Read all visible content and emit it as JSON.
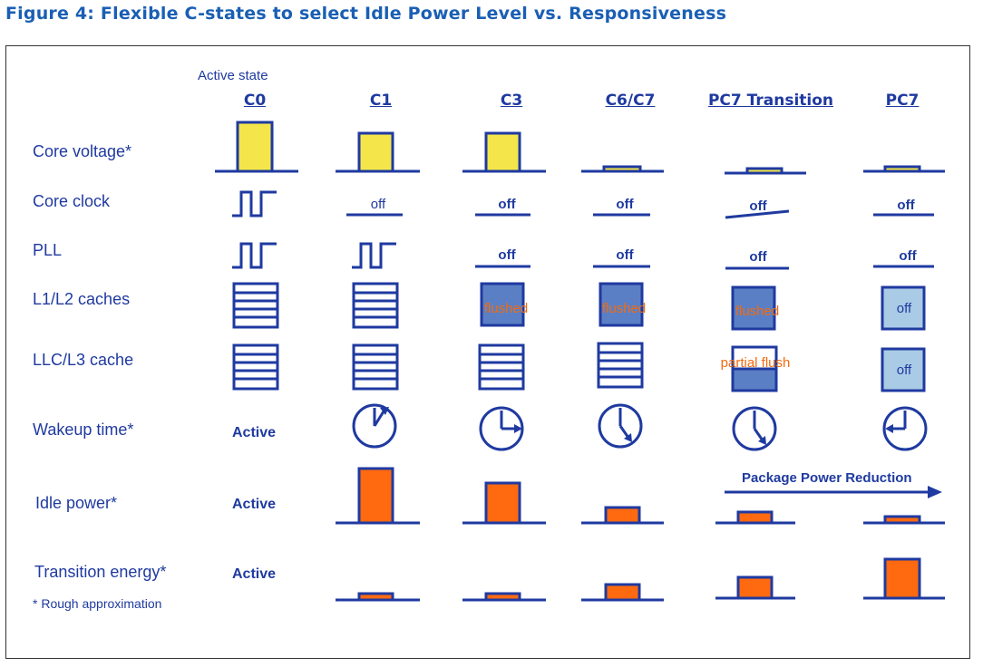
{
  "figure_title": "Figure 4: Flexible C-states to select Idle Power Level vs. Responsiveness",
  "active_state_caption": "Active state",
  "columns": [
    "C0",
    "C1",
    "C3",
    "C6/C7",
    "PC7 Transition",
    "PC7"
  ],
  "rows": [
    "Core voltage*",
    "Core clock",
    "PLL",
    "L1/L2 caches",
    "LLC/L3 cache",
    "Wakeup time*",
    "Idle power*",
    "Transition energy*"
  ],
  "footnote": "* Rough approximation",
  "off": "off",
  "flushed": "flushed",
  "partial_flush": "partial flush",
  "active": "Active",
  "package_power_reduction": "Package Power Reduction",
  "colors": {
    "title": "#1a5fb4",
    "navy": "#1f3aa0",
    "yellow": "#f4e64a",
    "orange": "#ff6a10",
    "flushed_blue": "#5b7fc4",
    "light_blue": "#a9cbe6"
  }
}
